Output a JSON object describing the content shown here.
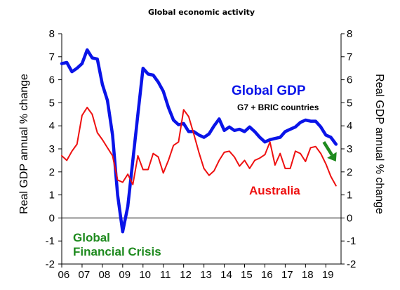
{
  "chart_data": {
    "type": "line",
    "title": "Global economic activity",
    "ylabel_left": "Real GDP annual % change",
    "ylabel_right": "Real GDP annual % change",
    "ylim": [
      -2,
      8
    ],
    "yticks": [
      -2,
      -1,
      0,
      1,
      2,
      3,
      4,
      5,
      6,
      7,
      8
    ],
    "xlim": [
      2006,
      2019.75
    ],
    "xticks": [
      "06",
      "07",
      "08",
      "09",
      "10",
      "11",
      "12",
      "13",
      "14",
      "15",
      "16",
      "17",
      "18",
      "19"
    ],
    "grid": false,
    "colors": {
      "global": "#0a14e8",
      "australia": "#ee1010",
      "arrow": "#1e8a1e",
      "gfc": "#1e8a1e"
    },
    "series": [
      {
        "key": "global",
        "x": [
          2006.0,
          2006.25,
          2006.5,
          2006.75,
          2007.0,
          2007.25,
          2007.5,
          2007.75,
          2008.0,
          2008.25,
          2008.5,
          2008.75,
          2009.0,
          2009.25,
          2009.5,
          2009.75,
          2010.0,
          2010.25,
          2010.5,
          2010.75,
          2011.0,
          2011.25,
          2011.5,
          2011.75,
          2012.0,
          2012.25,
          2012.5,
          2012.75,
          2013.0,
          2013.25,
          2013.5,
          2013.75,
          2014.0,
          2014.25,
          2014.5,
          2014.75,
          2015.0,
          2015.25,
          2015.5,
          2015.75,
          2016.0,
          2016.25,
          2016.5,
          2016.75,
          2017.0,
          2017.25,
          2017.5,
          2017.75,
          2018.0,
          2018.25,
          2018.5,
          2018.75,
          2019.0,
          2019.25,
          2019.5
        ],
        "y": [
          6.7,
          6.75,
          6.35,
          6.5,
          6.7,
          7.3,
          6.95,
          6.9,
          5.8,
          5.1,
          3.6,
          1.0,
          -0.6,
          0.5,
          2.5,
          4.5,
          6.5,
          6.25,
          6.2,
          5.9,
          5.5,
          4.8,
          4.25,
          4.05,
          4.1,
          3.75,
          3.75,
          3.6,
          3.5,
          3.65,
          4.0,
          4.3,
          3.8,
          3.95,
          3.8,
          3.85,
          3.75,
          3.95,
          3.75,
          3.5,
          3.3,
          3.4,
          3.45,
          3.5,
          3.75,
          3.85,
          3.95,
          4.15,
          4.25,
          4.2,
          4.2,
          3.95,
          3.6,
          3.5,
          3.2
        ]
      },
      {
        "key": "australia",
        "x": [
          2006.0,
          2006.25,
          2006.5,
          2006.75,
          2007.0,
          2007.25,
          2007.5,
          2007.75,
          2008.0,
          2008.25,
          2008.5,
          2008.75,
          2009.0,
          2009.25,
          2009.5,
          2009.75,
          2010.0,
          2010.25,
          2010.5,
          2010.75,
          2011.0,
          2011.25,
          2011.5,
          2011.75,
          2012.0,
          2012.25,
          2012.5,
          2012.75,
          2013.0,
          2013.25,
          2013.5,
          2013.75,
          2014.0,
          2014.25,
          2014.5,
          2014.75,
          2015.0,
          2015.25,
          2015.5,
          2015.75,
          2016.0,
          2016.25,
          2016.5,
          2016.75,
          2017.0,
          2017.25,
          2017.5,
          2017.75,
          2018.0,
          2018.25,
          2018.5,
          2018.75,
          2019.0,
          2019.25,
          2019.5
        ],
        "y": [
          2.7,
          2.5,
          2.9,
          3.2,
          4.45,
          4.8,
          4.5,
          3.7,
          3.4,
          3.05,
          2.7,
          1.65,
          1.55,
          1.9,
          1.45,
          2.7,
          2.1,
          2.1,
          2.8,
          2.65,
          1.95,
          2.5,
          3.15,
          3.3,
          4.7,
          4.4,
          3.65,
          2.85,
          2.15,
          1.85,
          2.05,
          2.5,
          2.85,
          2.9,
          2.65,
          2.25,
          2.5,
          2.15,
          2.5,
          2.6,
          2.75,
          3.3,
          2.3,
          2.8,
          2.15,
          2.15,
          2.9,
          2.8,
          2.45,
          3.05,
          3.1,
          2.8,
          2.35,
          1.8,
          1.4
        ]
      }
    ],
    "annotations": {
      "global_label": "Global GDP",
      "global_sublabel": "G7 + BRIC countries",
      "australia_label": "Australia",
      "gfc_line1": "Global",
      "gfc_line2": "Financial Crisis"
    }
  }
}
